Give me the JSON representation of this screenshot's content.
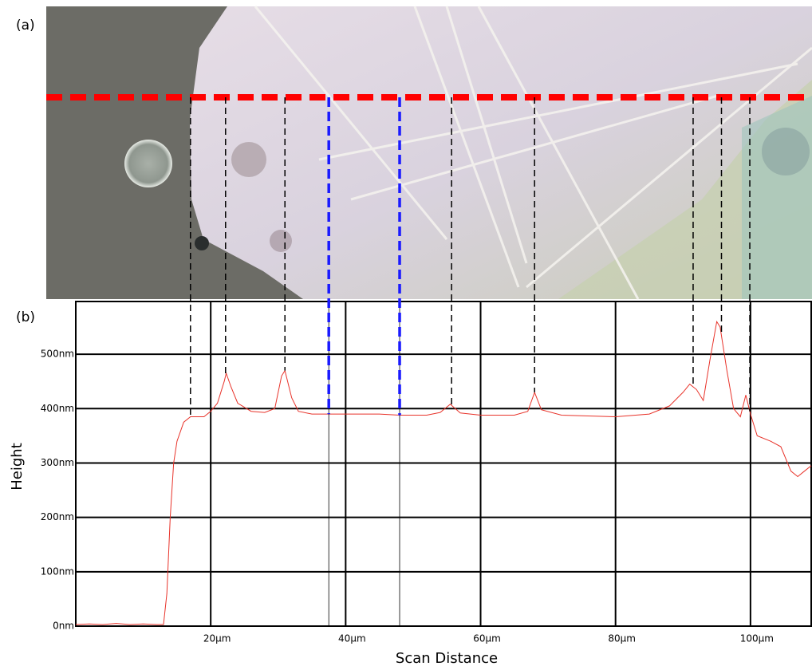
{
  "panel_labels": [
    "(a)",
    "(b)"
  ],
  "chart_data": {
    "type": "line",
    "x_label": "Scan Distance",
    "y_label": "Height",
    "x": [
      0,
      2,
      4,
      6,
      8,
      10,
      12,
      13,
      13.5,
      14,
      14.5,
      15,
      16,
      17,
      19,
      20,
      21,
      22,
      22.3,
      23,
      24,
      26,
      28,
      29.5,
      30.5,
      31,
      32,
      33,
      35,
      40,
      45,
      48,
      52,
      54,
      55.5,
      57,
      60,
      65,
      67,
      68,
      69,
      72,
      80,
      85,
      88,
      90,
      91,
      92,
      93,
      94,
      95,
      95.5,
      96.5,
      97.5,
      98.5,
      99.3,
      100,
      101,
      103,
      104.5,
      106,
      107,
      108,
      109
    ],
    "values": [
      3,
      4,
      3,
      5,
      3,
      4,
      3,
      3,
      60,
      200,
      300,
      340,
      375,
      385,
      385,
      395,
      410,
      450,
      465,
      440,
      410,
      395,
      393,
      400,
      460,
      470,
      420,
      395,
      390,
      390,
      390,
      388,
      388,
      393,
      408,
      392,
      388,
      388,
      395,
      430,
      398,
      388,
      385,
      390,
      405,
      430,
      445,
      435,
      415,
      490,
      560,
      550,
      470,
      400,
      385,
      425,
      390,
      350,
      340,
      330,
      285,
      275,
      285,
      295
    ],
    "color": "#e8332a",
    "xlim": [
      0,
      109
    ],
    "ylim": [
      0,
      597
    ],
    "xticks": [
      {
        "value": 20,
        "label": "20µm"
      },
      {
        "value": 40,
        "label": "40µm"
      },
      {
        "value": 60,
        "label": "60µm"
      },
      {
        "value": 80,
        "label": "80µm"
      },
      {
        "value": 100,
        "label": "100µm"
      }
    ],
    "yticks": [
      {
        "value": 0,
        "label": "0nm"
      },
      {
        "value": 100,
        "label": "100nm"
      },
      {
        "value": 200,
        "label": "200nm"
      },
      {
        "value": 300,
        "label": "300nm"
      },
      {
        "value": 400,
        "label": "400nm"
      },
      {
        "value": 500,
        "label": "500nm"
      }
    ],
    "grid": true,
    "guides": [
      {
        "color": "#000000",
        "x": [
          17,
          22.2,
          31,
          55.7,
          68,
          91.5,
          95.7,
          99.9
        ]
      },
      {
        "color": "#1a1aff",
        "x": [
          37.5,
          48
        ]
      }
    ]
  }
}
